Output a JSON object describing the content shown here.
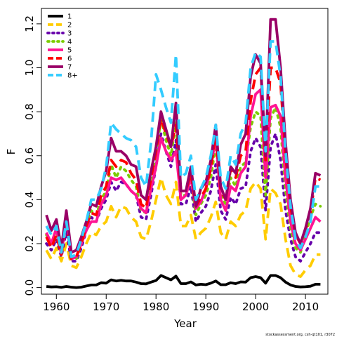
{
  "chart_data": {
    "type": "line",
    "xlabel": "Year",
    "ylabel": "F",
    "xlim": [
      1957,
      2014.5
    ],
    "ylim": [
      -0.03,
      1.27
    ],
    "xticks": [
      1960,
      1970,
      1980,
      1990,
      2000,
      2010
    ],
    "xtick_labels": [
      "1960",
      "1970",
      "1980",
      "1990",
      "2000",
      "2010"
    ],
    "yticks": [
      0.0,
      0.2,
      0.4,
      0.6,
      0.8,
      1.0,
      1.2
    ],
    "ytick_labels": [
      "0.0",
      "0.2",
      "0.4",
      "0.6",
      "0.8",
      "1.0",
      "1.2"
    ],
    "grid": false,
    "legend_position": "top-left",
    "x": [
      1958,
      1959,
      1960,
      1961,
      1962,
      1963,
      1964,
      1965,
      1966,
      1967,
      1968,
      1969,
      1970,
      1971,
      1972,
      1973,
      1974,
      1975,
      1976,
      1977,
      1978,
      1979,
      1980,
      1981,
      1982,
      1983,
      1984,
      1985,
      1986,
      1987,
      1988,
      1989,
      1990,
      1991,
      1992,
      1993,
      1994,
      1995,
      1996,
      1997,
      1998,
      1999,
      2000,
      2001,
      2002,
      2003,
      2004,
      2005,
      2006,
      2007,
      2008,
      2009,
      2010,
      2011,
      2012,
      2013
    ],
    "series": [
      {
        "name": "1",
        "color": "#000000",
        "dash": "solid",
        "values": [
          0.005,
          0.003,
          0.004,
          0.001,
          0.005,
          0.002,
          0.0,
          0.002,
          0.007,
          0.012,
          0.012,
          0.022,
          0.02,
          0.035,
          0.03,
          0.033,
          0.03,
          0.03,
          0.025,
          0.018,
          0.017,
          0.025,
          0.032,
          0.055,
          0.045,
          0.035,
          0.052,
          0.018,
          0.018,
          0.026,
          0.012,
          0.015,
          0.013,
          0.02,
          0.03,
          0.013,
          0.013,
          0.022,
          0.018,
          0.026,
          0.025,
          0.045,
          0.05,
          0.045,
          0.02,
          0.055,
          0.055,
          0.045,
          0.025,
          0.012,
          0.005,
          0.003,
          0.004,
          0.006,
          0.015,
          0.015
        ]
      },
      {
        "name": "2",
        "color": "#FFCC00",
        "dash": "dashed",
        "values": [
          0.17,
          0.13,
          0.18,
          0.12,
          0.2,
          0.1,
          0.09,
          0.14,
          0.2,
          0.25,
          0.24,
          0.28,
          0.3,
          0.37,
          0.32,
          0.37,
          0.36,
          0.32,
          0.3,
          0.23,
          0.22,
          0.3,
          0.4,
          0.5,
          0.42,
          0.38,
          0.48,
          0.28,
          0.28,
          0.33,
          0.22,
          0.25,
          0.27,
          0.32,
          0.39,
          0.25,
          0.22,
          0.3,
          0.28,
          0.33,
          0.35,
          0.45,
          0.48,
          0.45,
          0.22,
          0.45,
          0.43,
          0.38,
          0.22,
          0.1,
          0.06,
          0.05,
          0.08,
          0.1,
          0.15,
          0.15
        ]
      },
      {
        "name": "3",
        "color": "#6600AA",
        "dash": "dotted",
        "values": [
          0.2,
          0.17,
          0.22,
          0.14,
          0.26,
          0.12,
          0.12,
          0.18,
          0.26,
          0.32,
          0.3,
          0.36,
          0.4,
          0.48,
          0.44,
          0.48,
          0.47,
          0.44,
          0.42,
          0.32,
          0.31,
          0.42,
          0.55,
          0.7,
          0.62,
          0.55,
          0.67,
          0.38,
          0.38,
          0.46,
          0.3,
          0.34,
          0.37,
          0.44,
          0.56,
          0.35,
          0.31,
          0.41,
          0.38,
          0.45,
          0.46,
          0.62,
          0.68,
          0.64,
          0.35,
          0.64,
          0.7,
          0.58,
          0.35,
          0.22,
          0.14,
          0.12,
          0.16,
          0.2,
          0.25,
          0.25
        ]
      },
      {
        "name": "4",
        "color": "#7CCD00",
        "dash": "dotted",
        "values": [
          0.24,
          0.2,
          0.26,
          0.16,
          0.3,
          0.14,
          0.13,
          0.2,
          0.28,
          0.35,
          0.33,
          0.4,
          0.44,
          0.56,
          0.5,
          0.55,
          0.53,
          0.49,
          0.46,
          0.35,
          0.34,
          0.47,
          0.6,
          0.77,
          0.67,
          0.6,
          0.75,
          0.42,
          0.42,
          0.5,
          0.33,
          0.38,
          0.42,
          0.5,
          0.65,
          0.42,
          0.38,
          0.5,
          0.46,
          0.55,
          0.57,
          0.73,
          0.8,
          0.78,
          0.42,
          0.77,
          0.82,
          0.73,
          0.44,
          0.27,
          0.18,
          0.16,
          0.24,
          0.32,
          0.38,
          0.37
        ]
      },
      {
        "name": "5",
        "color": "#FF1493",
        "dash": "solid",
        "values": [
          0.25,
          0.2,
          0.27,
          0.15,
          0.32,
          0.13,
          0.14,
          0.2,
          0.26,
          0.3,
          0.3,
          0.38,
          0.42,
          0.5,
          0.49,
          0.5,
          0.47,
          0.44,
          0.42,
          0.36,
          0.34,
          0.45,
          0.55,
          0.68,
          0.62,
          0.58,
          0.62,
          0.4,
          0.42,
          0.5,
          0.36,
          0.39,
          0.45,
          0.55,
          0.68,
          0.4,
          0.35,
          0.46,
          0.44,
          0.52,
          0.55,
          0.78,
          0.88,
          0.9,
          0.5,
          0.82,
          0.83,
          0.78,
          0.5,
          0.3,
          0.2,
          0.17,
          0.22,
          0.27,
          0.32,
          0.3
        ]
      },
      {
        "name": "6",
        "color": "#FF0000",
        "dash": "dashed",
        "values": [
          0.23,
          0.18,
          0.24,
          0.15,
          0.3,
          0.13,
          0.14,
          0.2,
          0.28,
          0.34,
          0.33,
          0.42,
          0.46,
          0.58,
          0.55,
          0.58,
          0.57,
          0.52,
          0.49,
          0.38,
          0.36,
          0.5,
          0.62,
          0.77,
          0.7,
          0.64,
          0.74,
          0.44,
          0.44,
          0.52,
          0.37,
          0.41,
          0.45,
          0.54,
          0.7,
          0.44,
          0.4,
          0.54,
          0.5,
          0.6,
          0.62,
          0.85,
          0.97,
          1.0,
          0.58,
          1.0,
          1.0,
          0.93,
          0.6,
          0.37,
          0.24,
          0.2,
          0.26,
          0.34,
          0.5,
          0.49
        ]
      },
      {
        "name": "7",
        "color": "#990066",
        "dash": "solid",
        "values": [
          0.33,
          0.26,
          0.31,
          0.18,
          0.35,
          0.16,
          0.17,
          0.23,
          0.3,
          0.38,
          0.37,
          0.46,
          0.53,
          0.68,
          0.62,
          0.62,
          0.6,
          0.56,
          0.55,
          0.42,
          0.4,
          0.53,
          0.64,
          0.8,
          0.72,
          0.64,
          0.84,
          0.44,
          0.44,
          0.55,
          0.37,
          0.45,
          0.48,
          0.58,
          0.74,
          0.46,
          0.4,
          0.55,
          0.52,
          0.65,
          0.7,
          0.96,
          1.06,
          1.02,
          0.6,
          1.22,
          1.22,
          1.0,
          0.66,
          0.4,
          0.25,
          0.2,
          0.27,
          0.36,
          0.52,
          0.51
        ]
      },
      {
        "name": "8+",
        "color": "#33CCFF",
        "dash": "dashed",
        "values": [
          0.28,
          0.24,
          0.28,
          0.16,
          0.3,
          0.14,
          0.15,
          0.22,
          0.3,
          0.4,
          0.4,
          0.45,
          0.55,
          0.75,
          0.72,
          0.7,
          0.68,
          0.67,
          0.64,
          0.5,
          0.46,
          0.66,
          0.97,
          0.9,
          0.82,
          0.75,
          1.06,
          0.5,
          0.52,
          0.6,
          0.4,
          0.45,
          0.5,
          0.6,
          0.74,
          0.5,
          0.45,
          0.6,
          0.56,
          0.7,
          0.75,
          1.0,
          1.07,
          1.05,
          0.62,
          1.12,
          1.12,
          0.96,
          0.62,
          0.37,
          0.22,
          0.18,
          0.23,
          0.3,
          0.46,
          0.46
        ]
      }
    ]
  },
  "credit_text": "stockassessment.org, csh-qt101, r3072"
}
